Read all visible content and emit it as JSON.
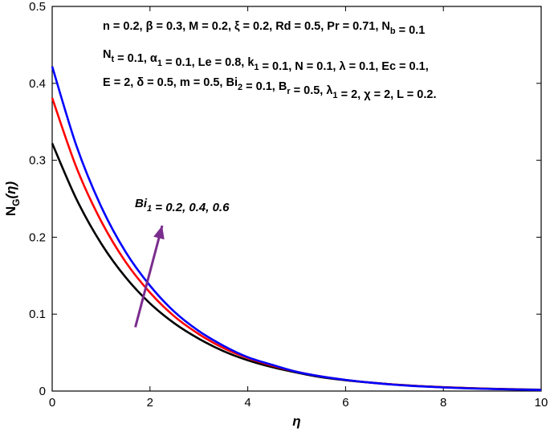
{
  "chart_data": {
    "type": "line",
    "xlabel": "η",
    "ylabel": "N",
    "ylabel_sub": "G",
    "ylabel_suffix": "(η)",
    "xlim": [
      0,
      10
    ],
    "ylim": [
      0,
      0.5
    ],
    "xticks": [
      0,
      2,
      4,
      6,
      8,
      10
    ],
    "yticks": [
      0,
      0.1,
      0.2,
      0.3,
      0.4,
      0.5
    ],
    "ytick_labels": [
      "0",
      "0.1",
      "0.2",
      "0.3",
      "0.4",
      "0.5"
    ],
    "grid": false,
    "x": [
      0,
      0.5,
      1,
      1.5,
      2,
      2.5,
      3,
      3.5,
      4,
      4.5,
      5,
      5.5,
      6,
      6.5,
      7,
      7.5,
      8,
      8.5,
      9,
      9.5,
      10
    ],
    "series": [
      {
        "color": "#000000",
        "values": [
          0.322,
          0.249,
          0.192,
          0.148,
          0.114,
          0.088,
          0.068,
          0.052,
          0.04,
          0.031,
          0.024,
          0.018,
          0.014,
          0.011,
          0.0085,
          0.0065,
          0.005,
          0.0039,
          0.003,
          0.0023,
          0.0018
        ]
      },
      {
        "color": "#ff0000",
        "values": [
          0.381,
          0.29,
          0.221,
          0.168,
          0.128,
          0.097,
          0.074,
          0.056,
          0.043,
          0.033,
          0.025,
          0.019,
          0.0145,
          0.011,
          0.0084,
          0.0064,
          0.0049,
          0.0037,
          0.0028,
          0.0021,
          0.0016
        ]
      },
      {
        "color": "#0000ff",
        "values": [
          0.422,
          0.318,
          0.24,
          0.181,
          0.137,
          0.103,
          0.078,
          0.059,
          0.044,
          0.034,
          0.025,
          0.019,
          0.0145,
          0.011,
          0.0082,
          0.0062,
          0.0047,
          0.0035,
          0.0027,
          0.002,
          0.0015
        ]
      }
    ],
    "annotations": {
      "params_lines": [
        "n = 0.2, β = 0.3, M = 0.2, ξ = 0.2, Rd = 0.5, Pr = 0.71, N_b = 0.1",
        "N_t = 0.1, α_1 = 0.1, Le = 0.8, k_1 = 0.1, N = 0.1, λ = 0.1, Ec = 0.1,",
        "E = 2, δ = 0.5, m = 0.5, Bi_2 = 0.1, B_r = 0.5, λ_1 = 2, χ = 2, L = 0.2."
      ],
      "arrow": {
        "label": "Bi_1 = 0.2, 0.4, 0.6",
        "color": "#7b2d8e",
        "from": [
          1.7,
          0.083
        ],
        "to": [
          2.25,
          0.215
        ]
      }
    }
  }
}
